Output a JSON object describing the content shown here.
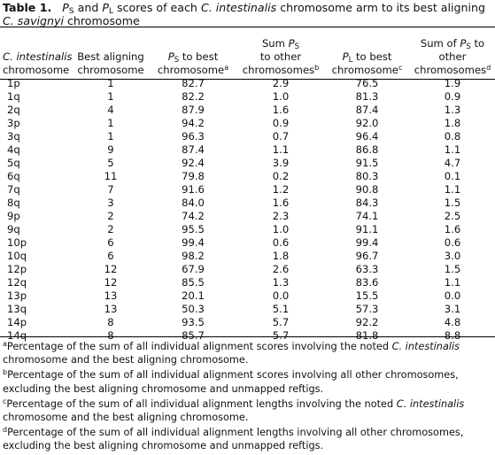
{
  "caption": {
    "label": "Table 1.",
    "ps_symbol": "P",
    "ps_sub": "S",
    "and_text": "and",
    "pl_symbol": "P",
    "pl_sub": "L",
    "text_before_species": "scores of each",
    "species_1": "C. intestinalis",
    "text_middle": "chromosome arm to its best aligning",
    "species_2": "C. savignyi",
    "text_after": "chromosome"
  },
  "table": {
    "headers": {
      "col1_species": "C. intestinalis",
      "col1_rest": "chromosome",
      "col2_line1": "Best aligning",
      "col2_line2": "chromosome",
      "col3_symbol": "P",
      "col3_sub": "S",
      "col3_text": "to best",
      "col3_line2": "chromosome",
      "col3_mark": "a",
      "col4_line1": "Sum",
      "col4_symbol": "P",
      "col4_sub": "S",
      "col4_line2": "to other",
      "col4_line3": "chromosomes",
      "col4_mark": "b",
      "col5_symbol": "P",
      "col5_sub": "L",
      "col5_text": "to best",
      "col5_line2": "chromosome",
      "col5_mark": "c",
      "col6_text": "Sum of",
      "col6_symbol": "P",
      "col6_sub": "S",
      "col6_text2": "to",
      "col6_line2": "other",
      "col6_line3": "chromosomes",
      "col6_mark": "d"
    },
    "rows": [
      [
        "1p",
        "1",
        "82.7",
        "2.9",
        "76.5",
        "1.9"
      ],
      [
        "1q",
        "1",
        "82.2",
        "1.0",
        "81.3",
        "0.9"
      ],
      [
        "2q",
        "4",
        "87.9",
        "1.6",
        "87.4",
        "1.3"
      ],
      [
        "3p",
        "1",
        "94.2",
        "0.9",
        "92.0",
        "1.8"
      ],
      [
        "3q",
        "1",
        "96.3",
        "0.7",
        "96.4",
        "0.8"
      ],
      [
        "4q",
        "9",
        "87.4",
        "1.1",
        "86.8",
        "1.1"
      ],
      [
        "5q",
        "5",
        "92.4",
        "3.9",
        "91.5",
        "4.7"
      ],
      [
        "6q",
        "11",
        "79.8",
        "0.2",
        "80.3",
        "0.1"
      ],
      [
        "7q",
        "7",
        "91.6",
        "1.2",
        "90.8",
        "1.1"
      ],
      [
        "8q",
        "3",
        "84.0",
        "1.6",
        "84.3",
        "1.5"
      ],
      [
        "9p",
        "2",
        "74.2",
        "2.3",
        "74.1",
        "2.5"
      ],
      [
        "9q",
        "2",
        "95.5",
        "1.0",
        "91.1",
        "1.6"
      ],
      [
        "10p",
        "6",
        "99.4",
        "0.6",
        "99.4",
        "0.6"
      ],
      [
        "10q",
        "6",
        "98.2",
        "1.8",
        "96.7",
        "3.0"
      ],
      [
        "12p",
        "12",
        "67.9",
        "2.6",
        "63.3",
        "1.5"
      ],
      [
        "12q",
        "12",
        "85.5",
        "1.3",
        "83.6",
        "1.1"
      ],
      [
        "13p",
        "13",
        "20.1",
        "0.0",
        "15.5",
        "0.0"
      ],
      [
        "13q",
        "13",
        "50.3",
        "5.1",
        "57.3",
        "3.1"
      ],
      [
        "14p",
        "8",
        "93.5",
        "5.7",
        "92.2",
        "4.8"
      ],
      [
        "14q",
        "8",
        "85.7",
        "5.7",
        "81.8",
        "8.8"
      ]
    ]
  },
  "footnotes": [
    {
      "mark": "a",
      "before": "Percentage of the sum of all individual alignment scores involving the noted",
      "species": "C. intestinalis",
      "after": "chromosome and the best aligning chromosome."
    },
    {
      "mark": "b",
      "before": "Percentage of the sum of all individual alignment scores involving all other chromosomes, excluding the best aligning chromosome and unmapped reftigs.",
      "species": "",
      "after": ""
    },
    {
      "mark": "c",
      "before": "Percentage of the sum of all individual alignment lengths involving the noted",
      "species": "C. intestinalis",
      "after": "chromosome and the best aligning chromosome."
    },
    {
      "mark": "d",
      "before": "Percentage of the sum of all individual alignment lengths involving all other chromosomes, excluding the best aligning chromosome and unmapped reftigs.",
      "species": "",
      "after": ""
    }
  ]
}
